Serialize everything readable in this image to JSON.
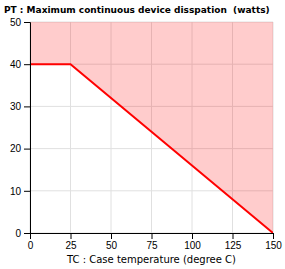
{
  "chart_data": {
    "type": "line",
    "title": "PT : Maximum continuous device disspation  (watts)",
    "x_label": "TC : Case temperature (degree C)",
    "x": [
      0,
      25,
      150
    ],
    "values": [
      40,
      40,
      0
    ],
    "color": "#ff0000",
    "xlim": [
      0,
      150
    ],
    "ylim": [
      0,
      50
    ],
    "xticks": [
      0,
      25,
      50,
      75,
      100,
      125,
      150
    ],
    "yticks": [
      0,
      10,
      20,
      30,
      40,
      50
    ],
    "grid": true
  }
}
